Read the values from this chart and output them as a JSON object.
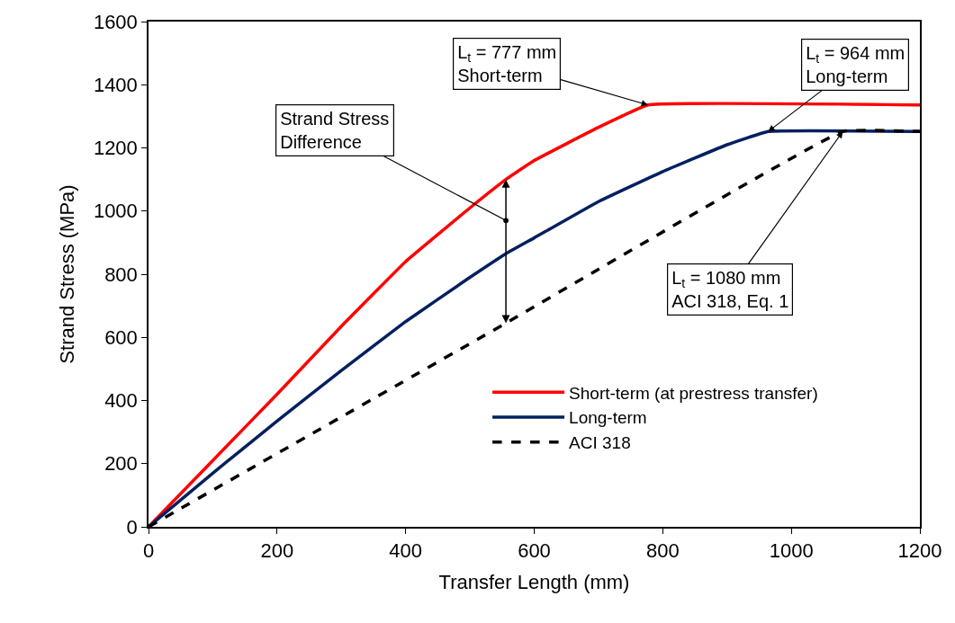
{
  "chart_data": {
    "type": "line",
    "xlabel": "Transfer Length (mm)",
    "ylabel": "Strand Stress (MPa)",
    "xlim": [
      0,
      1200
    ],
    "xticks": [
      0,
      200,
      400,
      600,
      800,
      1000,
      1200
    ],
    "ylim": [
      0,
      1600
    ],
    "yticks": [
      0,
      200,
      400,
      600,
      800,
      1000,
      1200,
      1400,
      1600
    ],
    "legend": "bottom right",
    "line_style": "solid",
    "marker": "none",
    "series": [
      {
        "name": "Short-term (at prestress transfer)",
        "color": "#ff0000",
        "x": [
          0,
          100,
          200,
          300,
          400,
          500,
          556,
          600,
          700,
          777,
          1200
        ],
        "values": [
          0,
          210,
          420,
          635,
          840,
          1010,
          1100,
          1160,
          1265,
          1336,
          1336
        ]
      },
      {
        "name": "Long-term",
        "color": "#002060",
        "x": [
          0,
          100,
          200,
          300,
          400,
          500,
          556,
          600,
          700,
          800,
          900,
          964,
          1200
        ],
        "values": [
          0,
          170,
          335,
          495,
          650,
          790,
          865,
          915,
          1030,
          1125,
          1210,
          1252,
          1252
        ]
      },
      {
        "name": "ACI 318",
        "color": "#000000",
        "line_style": "dashed",
        "x": [
          0,
          556,
          1080,
          1200
        ],
        "values": [
          0,
          645,
          1252,
          1252
        ]
      }
    ],
    "annotations": [
      {
        "text": "Strand Stress\nDifference",
        "x": 556,
        "y": 970
      },
      {
        "text": "L$_{t}$ = 777 mm\nShort-term",
        "x": 777,
        "y": 1336
      },
      {
        "text": "L$_{t}$ = 964 mm\nLong-term",
        "x": 964,
        "y": 1252
      },
      {
        "text": "L$_{t}$ = 1080 mm\nACI 318, Eq. 1",
        "x": 1080,
        "y": 1252
      }
    ]
  }
}
